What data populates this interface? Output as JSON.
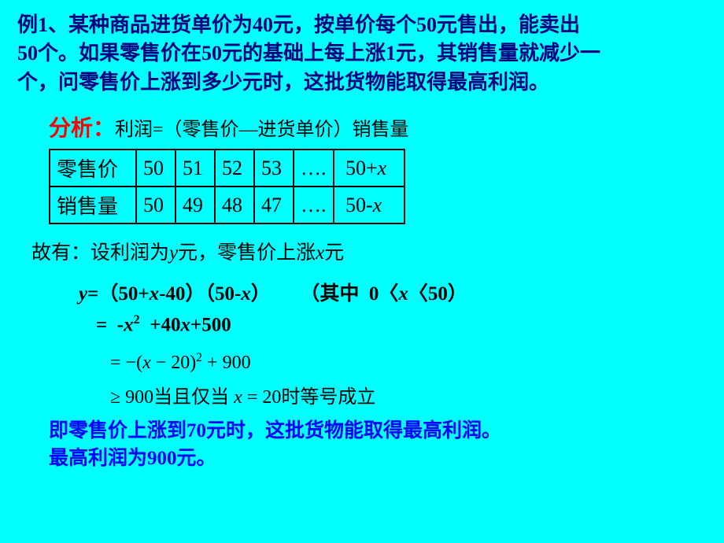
{
  "problem": {
    "line1": "例1、某种商品进货单价为40元，按单价每个50元售出，能卖出",
    "line2": "50个。如果零售价在50元的基础上每上涨1元，其销售量就减少一",
    "line3": "个，问零售价上涨到多少元时，这批货物能取得最高利润。"
  },
  "analysis": {
    "label": "分析：",
    "formula": "利润=（零售价—进货单价）销售量"
  },
  "table": {
    "row1_label": "零售价",
    "row1_cells": [
      "50",
      "51",
      "52",
      "53",
      "….",
      "50+x"
    ],
    "row2_label": "销售量",
    "row2_cells": [
      "50",
      "49",
      "48",
      "47",
      "….",
      "50-x"
    ]
  },
  "statement": "故有：设利润为y元，零售价上涨x元",
  "equations": {
    "line1_lhs": "y=（50+x-40）（50-x）",
    "line1_rhs_prefix": "（其中  0〈",
    "line1_rhs_mid": "x",
    "line1_rhs_suffix": "〈50）",
    "line2": "=  -x²  +40x+500",
    "line3_pre": "= −(",
    "line3_x": "x",
    "line3_mid": " − 20)",
    "line3_sup": "2",
    "line3_suf": " + 900",
    "line4_pre": "≥ 900",
    "line4_cn1": "当且仅当",
    "line4_mid": " x = 20",
    "line4_cn2": "时等号成立"
  },
  "conclusion": {
    "line1": "即零售价上涨到70元时，这批货物能取得最高利润。",
    "line2": "最高利润为900元。"
  },
  "styling": {
    "background_color": "#00ffff",
    "problem_color": "#000080",
    "analysis_label_color": "#ff0000",
    "conclusion_color": "#0000ff",
    "table_border_color": "#000000",
    "problem_fontsize": 26,
    "analysis_fontsize": 26,
    "table_fontsize": 26,
    "equation_fontsize": 25,
    "conclusion_fontsize": 25
  }
}
